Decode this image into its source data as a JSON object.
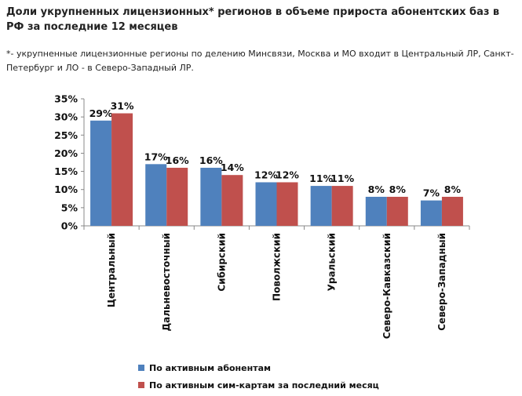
{
  "title": "Доли укрупненных лицензионных* регионов в объеме прироста абонентских баз в РФ за последние 12 месяцев",
  "note": "*- укрупненные лицензионные регионы по делению Минсвязи, Москва и МО входит в Центральный ЛР, Санкт-Петербург и ЛО - в Северо-Западный ЛР.",
  "chart_data": {
    "type": "bar",
    "categories": [
      "Центральный",
      "Дальневосточный",
      "Сибирский",
      "Поволжский",
      "Уральский",
      "Северо-Кавказский",
      "Северо-Западный"
    ],
    "series": [
      {
        "name": "По активным абонентам",
        "values": [
          29,
          17,
          16,
          12,
          11,
          8,
          7
        ],
        "color": "#4f81bd"
      },
      {
        "name": "По активным сим-картам за последний месяц",
        "values": [
          31,
          16,
          14,
          12,
          11,
          8,
          8
        ],
        "color": "#c0504d"
      }
    ],
    "data_labels": [
      [
        "29%",
        "17%",
        "16%",
        "12%",
        "11%",
        "8%",
        "7%"
      ],
      [
        "31%",
        "16%",
        "14%",
        "12%",
        "11%",
        "8%",
        "8%"
      ]
    ],
    "yticks": [
      0,
      5,
      10,
      15,
      20,
      25,
      30,
      35
    ],
    "ytick_labels": [
      "0%",
      "5%",
      "10%",
      "15%",
      "20%",
      "25%",
      "30%",
      "35%"
    ],
    "ylim": [
      0,
      35
    ],
    "grid": false,
    "legend_position": "bottom"
  }
}
